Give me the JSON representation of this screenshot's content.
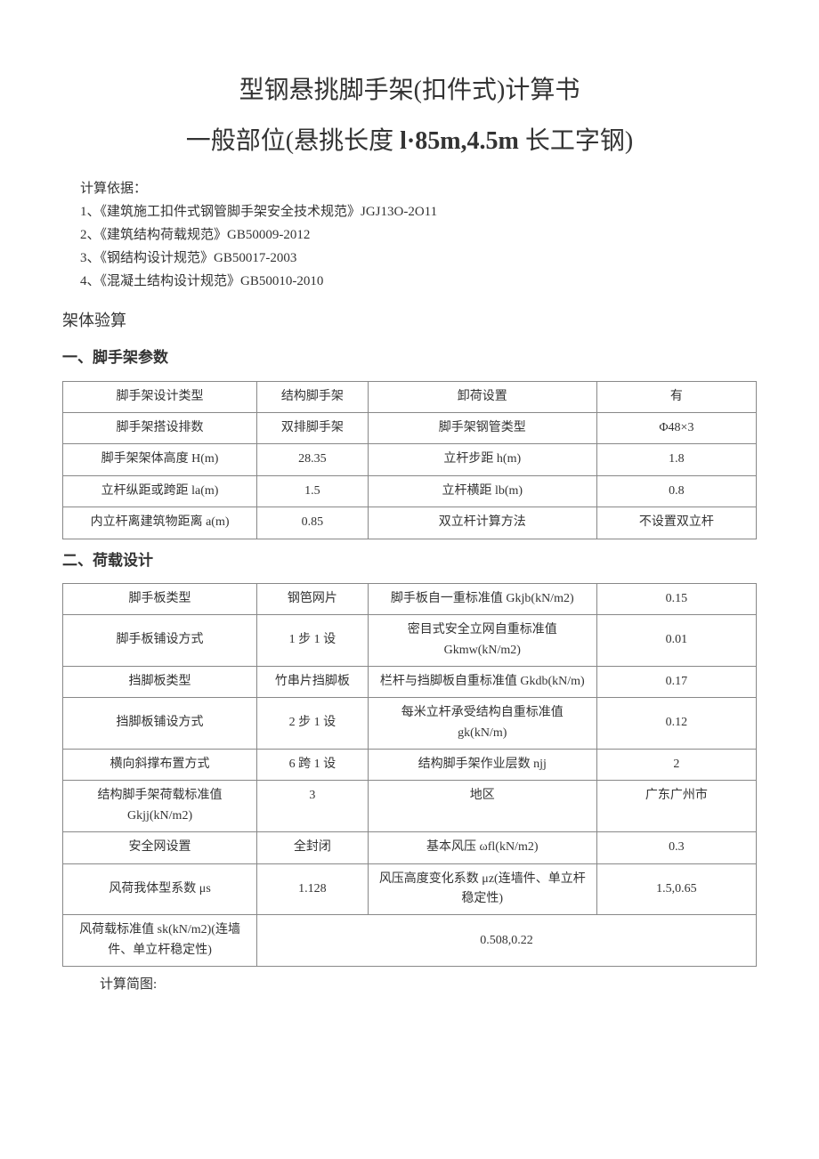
{
  "title1": "型钢悬挑脚手架(扣件式)计算书",
  "title2_prefix": "一般部位(悬挑长度 ",
  "title2_bold": "l·85m,4.5m",
  "title2_suffix": " 长工字钢)",
  "basis_label": "计算依据：",
  "basis_items": [
    "1、《建筑施工扣件式钢管脚手架安全技术规范》JGJ13O-2O11",
    "2、《建筑结构荷载规范》GB50009-2012",
    "3、《钢结构设计规范》GB50017-2003",
    "4、《混凝土结构设计规范》GB50010-2010"
  ],
  "section_frame_check": "架体验算",
  "section1_heading": "一、脚手架参数",
  "table1": {
    "rows": [
      [
        "脚手架设计类型",
        "结构脚手架",
        "卸荷设置",
        "有"
      ],
      [
        "脚手架搭设排数",
        "双排脚手架",
        "脚手架钢管类型",
        "Φ48×3"
      ],
      [
        "脚手架架体高度 H(m)",
        "28.35",
        "立杆步距 h(m)",
        "1.8"
      ],
      [
        "立杆纵距或跨距 la(m)",
        "1.5",
        "立杆横距 lb(m)",
        "0.8"
      ],
      [
        "内立杆离建筑物距离 a(m)",
        "0.85",
        "双立杆计算方法",
        "不设置双立杆"
      ]
    ]
  },
  "section2_heading": "二、荷载设计",
  "table2": {
    "rows": [
      [
        "脚手板类型",
        "钢笆网片",
        "脚手板自一重标准值 Gkjb(kN/m2)",
        "0.15"
      ],
      [
        "脚手板铺设方式",
        "1 步 1 设",
        "密目式安全立网自重标准值 Gkmw(kN/m2)",
        "0.01"
      ],
      [
        "挡脚板类型",
        "竹串片挡脚板",
        "栏杆与挡脚板自重标准值 Gkdb(kN/m)",
        "0.17"
      ],
      [
        "挡脚板铺设方式",
        "2 步 1 设",
        "每米立杆承受结构自重标准值 gk(kN/m)",
        "0.12"
      ],
      [
        "横向斜撑布置方式",
        "6 跨 1 设",
        "结构脚手架作业层数 njj",
        "2"
      ],
      [
        "结构脚手架荷载标准值 Gkjj(kN/m2)",
        "3",
        "地区",
        "广东广州市"
      ],
      [
        "安全网设置",
        "全封闭",
        "基本风压 ωfl(kN/m2)",
        "0.3"
      ],
      [
        "风荷我体型系数 μs",
        "1.128",
        "风压高度变化系数 μz(连墙件、单立杆稳定性)",
        "1.5,0.65"
      ]
    ],
    "last_row_label": "风荷载标准值 sk(kN/m2)(连墙件、单立杆稳定性)",
    "last_row_value": "0.508,0.22"
  },
  "footer_note": "计算简图:"
}
